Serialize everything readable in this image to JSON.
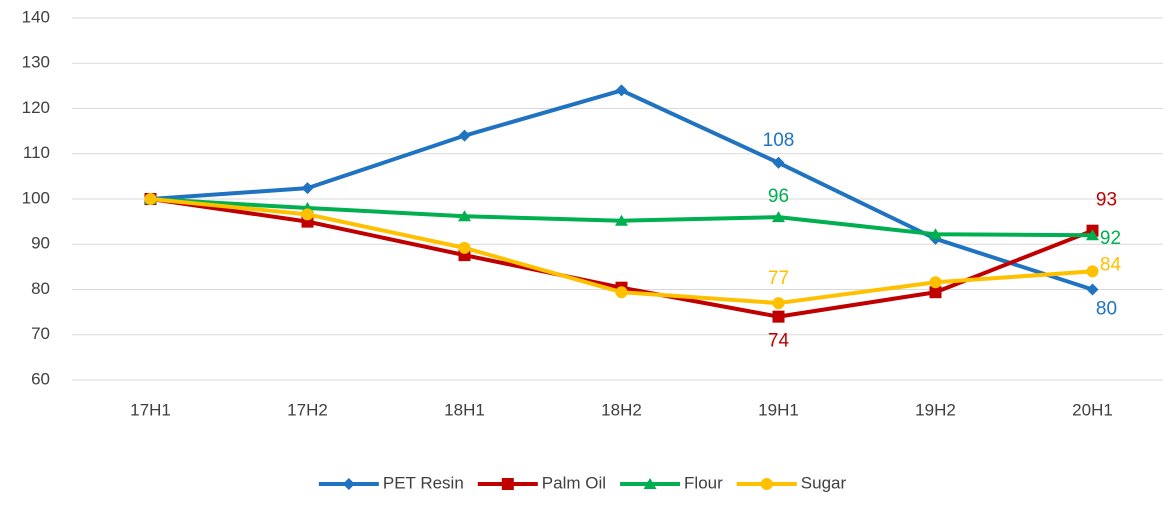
{
  "chart_data": {
    "type": "line",
    "categories": [
      "17H1",
      "17H2",
      "18H1",
      "18H2",
      "19H1",
      "19H2",
      "20H1"
    ],
    "series": [
      {
        "name": "PET Resin",
        "color": "#1f73c0",
        "marker": "diamond",
        "values": [
          100,
          102.4,
          114,
          124,
          108,
          91.2,
          80
        ],
        "value_labels": [
          null,
          null,
          null,
          null,
          "108",
          null,
          "80"
        ]
      },
      {
        "name": "Palm Oil",
        "color": "#c00000",
        "marker": "square",
        "values": [
          100,
          95,
          87.6,
          80.4,
          74,
          79.4,
          93
        ],
        "value_labels": [
          null,
          null,
          null,
          null,
          "74",
          null,
          "93"
        ]
      },
      {
        "name": "Flour",
        "color": "#00b050",
        "marker": "triangle",
        "values": [
          100,
          98,
          96.2,
          95.2,
          96,
          92.2,
          92
        ],
        "value_labels": [
          null,
          null,
          null,
          null,
          "96",
          null,
          "92"
        ]
      },
      {
        "name": "Sugar",
        "color": "#ffc000",
        "marker": "circle",
        "values": [
          100,
          96.6,
          89.2,
          79.4,
          77,
          81.6,
          84
        ],
        "value_labels": [
          null,
          null,
          null,
          null,
          "77",
          null,
          "84"
        ]
      }
    ],
    "ylim": [
      60,
      140
    ],
    "yticks": [
      60,
      70,
      80,
      90,
      100,
      110,
      120,
      130,
      140
    ],
    "grid": true,
    "legend": "bottom"
  }
}
